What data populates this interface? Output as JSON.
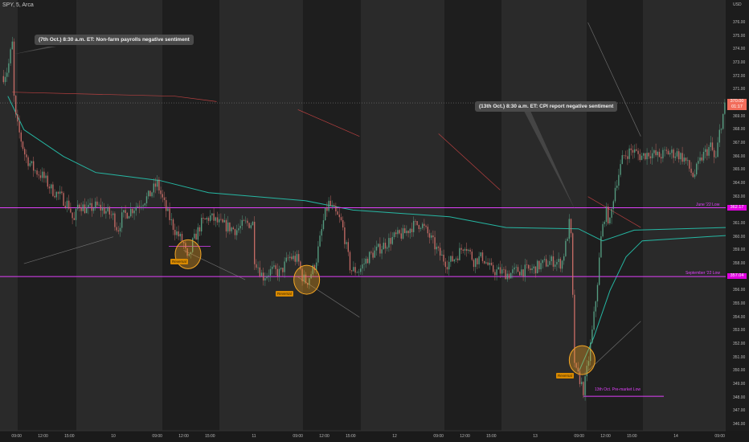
{
  "header": {
    "symbol": "SPY, 5, Arca"
  },
  "axis": {
    "currency": "USD"
  },
  "colors": {
    "bg_light": "#2a2a2a",
    "bg_dark": "#1e1e1e",
    "up": "#5aa88a",
    "down": "#d0706a",
    "vwap": "#26c6b0",
    "upper_band": "#c94444",
    "band_gray": "#8a8a8a",
    "level": "#e040fb",
    "reversal": "#f5a623",
    "price_badge": "#f26d5b"
  },
  "annotations": {
    "callout_1": "(7th Oct.) 8:30 a.m. ET: Non-farm payrolls negative sentiment",
    "callout_2": "(13th Oct.) 8:30 a.m. ET: CPI report negative sentiment",
    "reversal_label": "Reversal",
    "level_june": "June '22 Low",
    "level_sept": "September '22 Low",
    "level_premarket": "13th Oct. Pre-market Low"
  },
  "price_badge": {
    "value": "370.00",
    "countdown": "01:17"
  },
  "level_badges": {
    "june": "362.17",
    "sept": "357.04"
  },
  "chart_data": {
    "type": "candlestick",
    "title": "",
    "ylim": [
      345.6,
      377
    ],
    "y_ticks": [
      "376.00",
      "375.00",
      "374.00",
      "373.00",
      "372.00",
      "371.00",
      "369.00",
      "368.00",
      "367.00",
      "366.00",
      "365.00",
      "364.00",
      "363.00",
      "361.00",
      "360.00",
      "359.00",
      "358.00",
      "356.00",
      "355.00",
      "354.00",
      "353.00",
      "352.00",
      "351.00",
      "350.00",
      "349.00",
      "348.00",
      "347.00",
      "346.00"
    ],
    "x_ticks": [
      {
        "t": "Oct 7 09:00",
        "label": "09:00"
      },
      {
        "t": "Oct 7 12:00",
        "label": "12:00"
      },
      {
        "t": "Oct 7 15:00",
        "label": "15:00"
      },
      {
        "t": "Oct 10 04:00",
        "label": "10"
      },
      {
        "t": "Oct 10 09:00",
        "label": "09:00"
      },
      {
        "t": "Oct 10 12:00",
        "label": "12:00"
      },
      {
        "t": "Oct 10 15:00",
        "label": "15:00"
      },
      {
        "t": "Oct 11 04:00",
        "label": "11"
      },
      {
        "t": "Oct 11 09:00",
        "label": "09:00"
      },
      {
        "t": "Oct 11 12:00",
        "label": "12:00"
      },
      {
        "t": "Oct 11 15:00",
        "label": "15:00"
      },
      {
        "t": "Oct 12 04:00",
        "label": "12"
      },
      {
        "t": "Oct 12 09:00",
        "label": "09:00"
      },
      {
        "t": "Oct 12 12:00",
        "label": "12:00"
      },
      {
        "t": "Oct 12 15:00",
        "label": "15:00"
      },
      {
        "t": "Oct 13 04:00",
        "label": "13"
      },
      {
        "t": "Oct 13 09:00",
        "label": "09:00"
      },
      {
        "t": "Oct 13 12:00",
        "label": "12:00"
      },
      {
        "t": "Oct 13 15:00",
        "label": "15:00"
      },
      {
        "t": "Oct 14 04:00",
        "label": "14"
      },
      {
        "t": "Oct 14 09:00",
        "label": "09:00"
      }
    ],
    "price": [
      [
        "Oct 7 07:30",
        372
      ],
      [
        "Oct 7 08:00",
        372.5
      ],
      [
        "Oct 7 08:30",
        374.5
      ],
      [
        "Oct 7 08:45",
        369.5
      ],
      [
        "Oct 7 09:00",
        368.5
      ],
      [
        "Oct 7 10:00",
        366
      ],
      [
        "Oct 7 11:00",
        365
      ],
      [
        "Oct 7 12:00",
        364.5
      ],
      [
        "Oct 7 13:00",
        363.5
      ],
      [
        "Oct 7 14:00",
        363
      ],
      [
        "Oct 7 15:00",
        362.3
      ],
      [
        "Oct 7 15:30",
        361
      ],
      [
        "Oct 7 16:00",
        362.5
      ],
      [
        "Oct 7 17:00",
        362
      ],
      [
        "Oct 7 18:00",
        362.3
      ],
      [
        "Oct 7 19:00",
        362
      ],
      [
        "Oct 7 20:00",
        361.5
      ],
      [
        "Oct 10 04:00",
        361.5
      ],
      [
        "Oct 10 04:30",
        360.5
      ],
      [
        "Oct 10 05:00",
        361.5
      ],
      [
        "Oct 10 06:00",
        362
      ],
      [
        "Oct 10 07:00",
        362.5
      ],
      [
        "Oct 10 08:00",
        363
      ],
      [
        "Oct 10 09:00",
        364
      ],
      [
        "Oct 10 10:00",
        362
      ],
      [
        "Oct 10 11:00",
        360.5
      ],
      [
        "Oct 10 12:00",
        359.5
      ],
      [
        "Oct 10 12:30",
        358
      ],
      [
        "Oct 10 13:00",
        359.5
      ],
      [
        "Oct 10 14:00",
        361
      ],
      [
        "Oct 10 15:00",
        361.5
      ],
      [
        "Oct 10 16:00",
        361
      ],
      [
        "Oct 10 18:00",
        360.5
      ],
      [
        "Oct 10 19:00",
        361
      ],
      [
        "Oct 10 20:00",
        361
      ],
      [
        "Oct 11 04:00",
        358.5
      ],
      [
        "Oct 11 05:00",
        357
      ],
      [
        "Oct 11 06:00",
        357.5
      ],
      [
        "Oct 11 07:00",
        357.3
      ],
      [
        "Oct 11 08:00",
        358.5
      ],
      [
        "Oct 11 09:00",
        358.3
      ],
      [
        "Oct 11 09:30",
        357
      ],
      [
        "Oct 11 10:00",
        356.6
      ],
      [
        "Oct 11 11:00",
        358
      ],
      [
        "Oct 11 12:00",
        361.5
      ],
      [
        "Oct 11 12:30",
        362.5
      ],
      [
        "Oct 11 13:00",
        362
      ],
      [
        "Oct 11 14:00",
        361
      ],
      [
        "Oct 11 15:00",
        357.5
      ],
      [
        "Oct 11 16:00",
        357.5
      ],
      [
        "Oct 11 17:00",
        358.5
      ],
      [
        "Oct 11 18:00",
        359
      ],
      [
        "Oct 11 19:00",
        359.5
      ],
      [
        "Oct 11 20:00",
        360
      ],
      [
        "Oct 12 04:00",
        360
      ],
      [
        "Oct 12 05:00",
        360.2
      ],
      [
        "Oct 12 06:00",
        360.8
      ],
      [
        "Oct 12 07:00",
        361
      ],
      [
        "Oct 12 08:00",
        360
      ],
      [
        "Oct 12 09:00",
        358.8
      ],
      [
        "Oct 12 10:00",
        358
      ],
      [
        "Oct 12 11:00",
        358.5
      ],
      [
        "Oct 12 12:00",
        359.5
      ],
      [
        "Oct 12 13:00",
        358.2
      ],
      [
        "Oct 12 14:00",
        358.5
      ],
      [
        "Oct 12 15:00",
        357.5
      ],
      [
        "Oct 12 16:00",
        357.4
      ],
      [
        "Oct 12 17:00",
        357.2
      ],
      [
        "Oct 12 18:00",
        357.5
      ],
      [
        "Oct 12 19:00",
        357.5
      ],
      [
        "Oct 12 20:00",
        357.6
      ],
      [
        "Oct 13 04:00",
        357.7
      ],
      [
        "Oct 13 05:00",
        358
      ],
      [
        "Oct 13 06:00",
        358.2
      ],
      [
        "Oct 13 07:00",
        358
      ],
      [
        "Oct 13 07:30",
        359.5
      ],
      [
        "Oct 13 08:00",
        361.5
      ],
      [
        "Oct 13 08:30",
        350
      ],
      [
        "Oct 13 09:00",
        349.5
      ],
      [
        "Oct 13 09:30",
        348.5
      ],
      [
        "Oct 13 10:00",
        350.5
      ],
      [
        "Oct 13 10:30",
        353
      ],
      [
        "Oct 13 11:00",
        356
      ],
      [
        "Oct 13 11:30",
        360
      ],
      [
        "Oct 13 12:00",
        362
      ],
      [
        "Oct 13 12:30",
        361
      ],
      [
        "Oct 13 13:00",
        363.5
      ],
      [
        "Oct 13 14:00",
        366
      ],
      [
        "Oct 13 15:00",
        366.5
      ],
      [
        "Oct 13 16:00",
        366
      ],
      [
        "Oct 13 17:00",
        366.3
      ],
      [
        "Oct 13 18:00",
        366
      ],
      [
        "Oct 13 19:00",
        366.3
      ],
      [
        "Oct 13 20:00",
        366.2
      ],
      [
        "Oct 14 04:00",
        366.3
      ],
      [
        "Oct 14 05:00",
        365.8
      ],
      [
        "Oct 14 06:00",
        364.5
      ],
      [
        "Oct 14 07:00",
        366
      ],
      [
        "Oct 14 08:00",
        366.8
      ],
      [
        "Oct 14 08:30",
        365.5
      ],
      [
        "Oct 14 09:00",
        368
      ],
      [
        "Oct 14 09:40",
        370
      ]
    ],
    "indicators": [
      {
        "role": "vwap",
        "points": [
          [
            "Oct 7 08:00",
            370.5
          ],
          [
            "Oct 7 09:50",
            368
          ],
          [
            "Oct 7 14:20",
            366
          ],
          [
            "Oct 7 18:00",
            364.8
          ],
          [
            "Oct 10 09:20",
            364.2
          ],
          [
            "Oct 10 14:50",
            363.3
          ],
          [
            "Oct 11 09:50",
            362.7
          ],
          [
            "Oct 11 15:15",
            362
          ],
          [
            "Oct 12 10:15",
            361.5
          ],
          [
            "Oct 12 16:40",
            360.7
          ],
          [
            "Oct 13 08:55",
            360.6
          ],
          [
            "Oct 13 11:40",
            359.7
          ],
          [
            "Oct 13 15:15",
            360.5
          ],
          [
            "Oct 14 09:40",
            360.7
          ]
        ]
      },
      {
        "role": "vwap",
        "points": [
          [
            "Oct 13 09:00",
            350
          ],
          [
            "Oct 13 10:40",
            352.5
          ],
          [
            "Oct 13 12:30",
            356
          ],
          [
            "Oct 13 14:20",
            358.5
          ],
          [
            "Oct 13 16:10",
            359.7
          ],
          [
            "Oct 14 09:40",
            360.1
          ]
        ]
      },
      {
        "role": "upper_band",
        "points": [
          [
            "Oct 7 08:30",
            370.8
          ],
          [
            "Oct 10 11:00",
            370.5
          ],
          [
            "Oct 10 15:45",
            370.1
          ]
        ]
      },
      {
        "role": "upper_band",
        "points": [
          [
            "Oct 11 09:00",
            369.5
          ],
          [
            "Oct 11 16:00",
            367.5
          ]
        ]
      },
      {
        "role": "upper_band",
        "points": [
          [
            "Oct 12 09:00",
            367.7
          ],
          [
            "Oct 12 16:00",
            363.5
          ]
        ]
      },
      {
        "role": "upper_band",
        "points": [
          [
            "Oct 13 10:00",
            363
          ],
          [
            "Oct 13 16:00",
            360.7
          ]
        ]
      },
      {
        "role": "band_gray",
        "points": [
          [
            "Oct 7 09:50",
            358
          ],
          [
            "Oct 7 20:00",
            360
          ]
        ]
      },
      {
        "role": "band_gray",
        "points": [
          [
            "Oct 10 12:00",
            359
          ],
          [
            "Oct 10 19:00",
            356.8
          ]
        ]
      },
      {
        "role": "band_gray",
        "points": [
          [
            "Oct 11 09:00",
            357
          ],
          [
            "Oct 11 16:00",
            354
          ]
        ]
      },
      {
        "role": "band_gray",
        "points": [
          [
            "Oct 13 10:00",
            350
          ],
          [
            "Oct 13 16:00",
            353.7
          ]
        ]
      },
      {
        "role": "band_gray",
        "points": [
          [
            "Oct 13 10:00",
            376
          ],
          [
            "Oct 13 16:00",
            367.5
          ]
        ]
      }
    ],
    "levels": [
      {
        "price": 362.17,
        "label": "June '22 Low"
      },
      {
        "price": 357.04,
        "label": "September '22 Low"
      },
      {
        "price": 348.1,
        "label": "13th Oct. Pre-market Low"
      },
      {
        "price": 359.3,
        "label": ""
      }
    ],
    "reversals": [
      [
        "Oct 10 12:30",
        358.7
      ],
      [
        "Oct 11 10:00",
        356.8
      ],
      [
        "Oct 13 09:20",
        350.8
      ]
    ],
    "last_price": 370.0
  }
}
